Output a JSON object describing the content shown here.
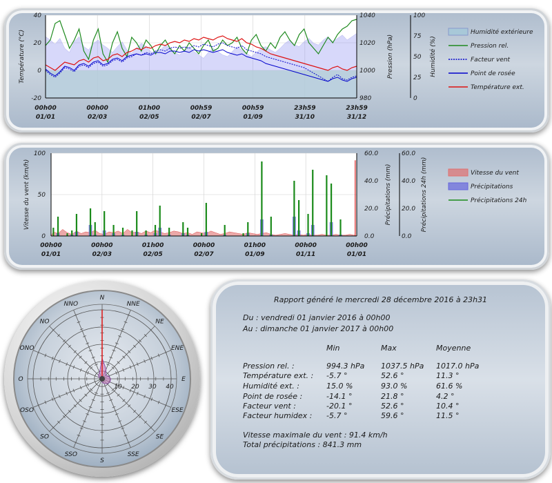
{
  "chart_data": [
    {
      "type": "line",
      "y_left": {
        "label": "Température (°C)",
        "ylim": [
          -20,
          40
        ],
        "ticks": [
          "-20",
          "0",
          "20",
          "40"
        ]
      },
      "y_right1": {
        "label": "Pression (hPa)",
        "ylim": [
          980,
          1040
        ],
        "ticks": [
          "980",
          "1000",
          "1020",
          "1040"
        ]
      },
      "y_right2": {
        "label": "Humidité (%)",
        "ylim": [
          0,
          100
        ],
        "ticks": [
          "0",
          "25",
          "50",
          "75",
          "100"
        ]
      },
      "x_ticks": [
        {
          "time": "00h00",
          "date": "01/01"
        },
        {
          "time": "00h00",
          "date": "02/03"
        },
        {
          "time": "01h00",
          "date": "02/05"
        },
        {
          "time": "00h59",
          "date": "02/07"
        },
        {
          "time": "00h59",
          "date": "01/09"
        },
        {
          "time": "23h59",
          "date": "31/10"
        },
        {
          "time": "23h59",
          "date": "31/12"
        }
      ],
      "legend": [
        "Humidité extérieure",
        "Pression rel.",
        "Facteur vent",
        "Point de rosée",
        "Température ext."
      ],
      "series": [
        {
          "name": "Humidité extérieure",
          "axis": "humidity",
          "color": "#8d8ff0",
          "values": [
            74,
            70,
            65,
            72,
            60,
            55,
            68,
            74,
            62,
            58,
            66,
            70,
            64,
            60,
            55,
            62,
            68,
            58,
            54,
            60,
            66,
            62,
            56,
            52,
            58,
            64,
            60,
            55,
            52,
            58,
            62,
            56,
            52,
            48,
            55,
            60,
            56,
            52,
            50,
            56,
            62,
            58,
            54,
            50,
            55,
            60,
            62,
            58,
            55,
            60,
            66,
            70,
            64,
            62,
            68,
            72,
            66,
            64,
            70,
            74,
            68,
            72,
            76,
            70,
            74,
            78
          ]
        },
        {
          "name": "Pression rel.",
          "axis": "pressure",
          "color": "#1e8a1e",
          "values": [
            1018,
            1022,
            1034,
            1036,
            1026,
            1016,
            1022,
            1030,
            1014,
            1008,
            1022,
            1030,
            1012,
            1006,
            1020,
            1028,
            1016,
            1010,
            1024,
            1020,
            1014,
            1022,
            1018,
            1012,
            1018,
            1022,
            1016,
            1012,
            1018,
            1014,
            1020,
            1016,
            1012,
            1018,
            1022,
            1014,
            1016,
            1022,
            1018,
            1020,
            1024,
            1016,
            1012,
            1022,
            1026,
            1018,
            1014,
            1020,
            1016,
            1024,
            1028,
            1022,
            1018,
            1026,
            1030,
            1020,
            1016,
            1012,
            1018,
            1024,
            1020,
            1026,
            1030,
            1032,
            1036,
            1037
          ]
        },
        {
          "name": "Facteur vent",
          "axis": "temperature",
          "color": "#0000cc",
          "values": [
            0,
            -3,
            -5,
            -2,
            2,
            1,
            -1,
            3,
            4,
            2,
            5,
            6,
            3,
            4,
            7,
            8,
            6,
            9,
            10,
            12,
            11,
            13,
            12,
            14,
            15,
            14,
            16,
            17,
            16,
            17,
            16,
            18,
            17,
            19,
            18,
            17,
            19,
            20,
            18,
            17,
            16,
            18,
            15,
            14,
            13,
            12,
            10,
            9,
            8,
            7,
            6,
            5,
            4,
            3,
            2,
            0,
            -2,
            -4,
            -6,
            -8,
            -5,
            -3,
            -6,
            -7,
            -5,
            -4
          ]
        },
        {
          "name": "Point de rosée",
          "axis": "temperature",
          "color": "#0000cc",
          "values": [
            1,
            -2,
            -4,
            -1,
            3,
            2,
            0,
            4,
            5,
            3,
            6,
            7,
            4,
            5,
            8,
            9,
            7,
            10,
            11,
            12,
            11,
            12,
            11,
            13,
            13,
            12,
            14,
            14,
            13,
            14,
            13,
            15,
            14,
            15,
            14,
            13,
            14,
            15,
            13,
            12,
            11,
            12,
            10,
            9,
            8,
            7,
            5,
            4,
            3,
            2,
            1,
            0,
            -1,
            -2,
            -3,
            -4,
            -5,
            -6,
            -7,
            -8,
            -6,
            -5,
            -7,
            -8,
            -6,
            -5
          ]
        },
        {
          "name": "Température ext.",
          "axis": "temperature",
          "color": "#dd1111",
          "values": [
            4,
            2,
            0,
            3,
            6,
            5,
            4,
            7,
            8,
            6,
            9,
            10,
            7,
            8,
            11,
            12,
            10,
            13,
            14,
            16,
            15,
            17,
            16,
            18,
            19,
            18,
            20,
            21,
            20,
            22,
            21,
            23,
            22,
            24,
            23,
            22,
            24,
            25,
            23,
            22,
            21,
            23,
            20,
            19,
            17,
            16,
            14,
            12,
            11,
            10,
            9,
            8,
            7,
            6,
            5,
            4,
            3,
            2,
            1,
            0,
            2,
            3,
            1,
            0,
            2,
            3
          ]
        }
      ]
    },
    {
      "type": "bar",
      "y_left": {
        "label": "Vitesse du vent (km/h)",
        "ylim": [
          0,
          100
        ],
        "ticks": [
          "0",
          "50",
          "100"
        ]
      },
      "y_right1": {
        "label": "Précipitations (mm)",
        "ylim": [
          0,
          60
        ],
        "ticks": [
          "0.0",
          "20.0",
          "40.0",
          "60.0"
        ]
      },
      "y_right2": {
        "label": "Précipitations 24h (mm)",
        "ylim": [
          0,
          60
        ],
        "ticks": [
          "0.0",
          "20.0",
          "40.0",
          "60.0"
        ]
      },
      "x_ticks": [
        {
          "time": "00h00",
          "date": "01/01"
        },
        {
          "time": "00h00",
          "date": "02/03"
        },
        {
          "time": "01h00",
          "date": "02/05"
        },
        {
          "time": "00h00",
          "date": "02/07"
        },
        {
          "time": "01h00",
          "date": "01/09"
        },
        {
          "time": "00h00",
          "date": "01/11"
        },
        {
          "time": "00h00",
          "date": "01/01"
        }
      ],
      "legend": [
        "Vitesse du vent",
        "Précipitations",
        "Précipitations 24h"
      ],
      "wind_max": {
        "x_fraction": 0.995,
        "value": 91.4
      },
      "series": [
        {
          "name": "Vitesse du vent",
          "axis": "wind",
          "color": "#e07070",
          "values": [
            5,
            3,
            8,
            4,
            2,
            6,
            3,
            5,
            4,
            7,
            3,
            2,
            5,
            4,
            6,
            3,
            8,
            4,
            5,
            3,
            6,
            4,
            7,
            5,
            3,
            4,
            6,
            5,
            3,
            4,
            2,
            5,
            4,
            3,
            6,
            4,
            2,
            3,
            5,
            4,
            3,
            2,
            4,
            3,
            2,
            3,
            4,
            2,
            1,
            2,
            3,
            2,
            1,
            2,
            1,
            2,
            1,
            1,
            2,
            1,
            1,
            2,
            1,
            1,
            2,
            1
          ]
        },
        {
          "name": "Précipitations",
          "axis": "rain",
          "color": "#6666dd",
          "values": [
            0,
            2,
            0,
            0,
            1,
            3,
            0,
            0,
            8,
            1,
            0,
            4,
            0,
            2,
            0,
            1,
            0,
            0,
            3,
            0,
            1,
            0,
            2,
            6,
            0,
            1,
            0,
            0,
            2,
            1,
            0,
            0,
            0,
            3,
            0,
            0,
            0,
            1,
            0,
            0,
            0,
            0,
            2,
            0,
            0,
            12,
            0,
            1,
            0,
            0,
            0,
            0,
            14,
            4,
            0,
            2,
            8,
            0,
            0,
            0,
            10,
            0,
            1,
            0,
            0,
            0
          ]
        },
        {
          "name": "Précipitations 24h",
          "axis": "rain",
          "color": "#1a8a1a",
          "values": [
            6,
            14,
            0,
            2,
            4,
            16,
            0,
            0,
            20,
            10,
            0,
            18,
            0,
            8,
            0,
            6,
            0,
            4,
            18,
            0,
            4,
            0,
            8,
            22,
            0,
            6,
            0,
            0,
            10,
            6,
            0,
            0,
            2,
            24,
            0,
            0,
            0,
            8,
            0,
            0,
            0,
            2,
            10,
            0,
            0,
            54,
            0,
            14,
            0,
            0,
            0,
            0,
            40,
            26,
            0,
            16,
            48,
            0,
            0,
            44,
            38,
            0,
            12,
            0,
            0,
            0
          ]
        }
      ]
    },
    {
      "type": "radar",
      "directions": [
        "N",
        "NNE",
        "NE",
        "ENE",
        "E",
        "ESE",
        "SE",
        "SSE",
        "S",
        "SSO",
        "SO",
        "OSO",
        "O",
        "ONO",
        "NO",
        "NNO"
      ],
      "rings": [
        "10",
        "20",
        "30",
        "40"
      ],
      "rmax": 40,
      "wind_frequency_pct": [
        42,
        6,
        3,
        4,
        5,
        5,
        4,
        3,
        2,
        1,
        1,
        1,
        1,
        2,
        3,
        4
      ],
      "max_speed_direction": "N",
      "max_speed_value": 40
    }
  ],
  "report": {
    "title": "Rapport généré le mercredi 28 décembre 2016 à 23h31",
    "from": "Du : vendredi 01 janvier 2016 à 00h00",
    "to": "Au : dimanche 01 janvier 2017 à 00h00",
    "headers": [
      "Min",
      "Max",
      "Moyenne"
    ],
    "rows": [
      {
        "label": "Pression rel. :",
        "min": "994.3 hPa",
        "max": "1037.5 hPa",
        "avg": "1017.0 hPa"
      },
      {
        "label": "Température ext. :",
        "min": "-5.7 °",
        "max": "52.6 °",
        "avg": "11.3 °"
      },
      {
        "label": "Humidité ext. :",
        "min": "15.0 %",
        "max": "93.0 %",
        "avg": "61.6 %"
      },
      {
        "label": "Point de rosée :",
        "min": "-14.1 °",
        "max": "21.8 °",
        "avg": "4.2 °"
      },
      {
        "label": "Facteur vent :",
        "min": "-20.1 °",
        "max": "52.6 °",
        "avg": "10.4 °"
      },
      {
        "label": "Facteur humidex :",
        "min": "-5.7 °",
        "max": "59.6 °",
        "avg": "11.5 °"
      }
    ],
    "wind_max": "Vitesse maximale du vent : 91.4 km/h",
    "rain_total": "Total précipitations : 841.3 mm"
  }
}
